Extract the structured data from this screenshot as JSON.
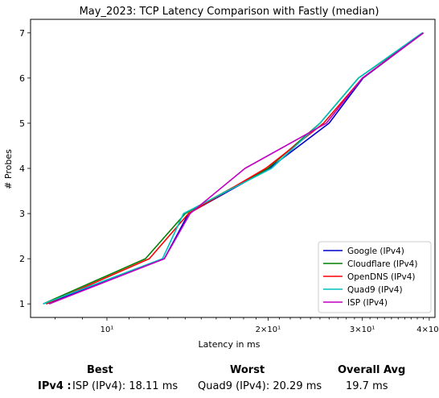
{
  "chart_data": {
    "type": "line",
    "title": "May_2023: TCP Latency Comparison with Fastly (median)",
    "xlabel": "Latency in ms",
    "ylabel": "# Probes",
    "xscale": "log",
    "xlim": [
      7.2,
      41
    ],
    "ylim": [
      0.7,
      7.3
    ],
    "x_ticks": [
      {
        "value": 10,
        "label": "10¹"
      },
      {
        "value": 20,
        "label": "2×10¹"
      },
      {
        "value": 30,
        "label": "3×10¹"
      },
      {
        "value": 40,
        "label": "4×10¹"
      }
    ],
    "y_ticks": [
      1,
      2,
      3,
      4,
      5,
      6,
      7
    ],
    "legend_position": "bottom-right",
    "grid": false,
    "series": [
      {
        "name": "Google (IPv4)",
        "color": "#0000cc",
        "x": [
          7.7,
          12.8,
          14.2,
          20.1,
          26.0,
          30.1,
          39.0
        ],
        "y": [
          1,
          2,
          3,
          4,
          5,
          6,
          7
        ]
      },
      {
        "name": "Cloudflare (IPv4)",
        "color": "#008000",
        "x": [
          7.6,
          11.8,
          14.0,
          20.0,
          25.0,
          29.5,
          39.0
        ],
        "y": [
          1,
          2,
          3,
          4,
          5,
          6,
          7
        ]
      },
      {
        "name": "OpenDNS (IPv4)",
        "color": "#ff0000",
        "x": [
          7.7,
          12.0,
          14.2,
          19.8,
          25.4,
          30.0,
          39.0
        ],
        "y": [
          1,
          2,
          3,
          4,
          5,
          6,
          7
        ]
      },
      {
        "name": "Quad9 (IPv4)",
        "color": "#00c0c0",
        "x": [
          7.6,
          12.7,
          13.9,
          20.29,
          25.0,
          29.5,
          38.8
        ],
        "y": [
          1,
          2,
          3,
          4,
          5,
          6,
          7
        ]
      },
      {
        "name": "ISP (IPv4)",
        "color": "#c000c0",
        "x": [
          7.8,
          12.8,
          14.3,
          18.11,
          25.7,
          30.0,
          39.0
        ],
        "y": [
          1,
          2,
          3,
          4,
          5,
          6,
          7
        ]
      }
    ]
  },
  "stats": {
    "best_header": "Best",
    "worst_header": "Worst",
    "avg_header": "Overall Avg",
    "row_label": "IPv4 :",
    "best_value": "ISP (IPv4): 18.11 ms",
    "worst_value": "Quad9 (IPv4): 20.29 ms",
    "avg_value": "19.7 ms"
  }
}
